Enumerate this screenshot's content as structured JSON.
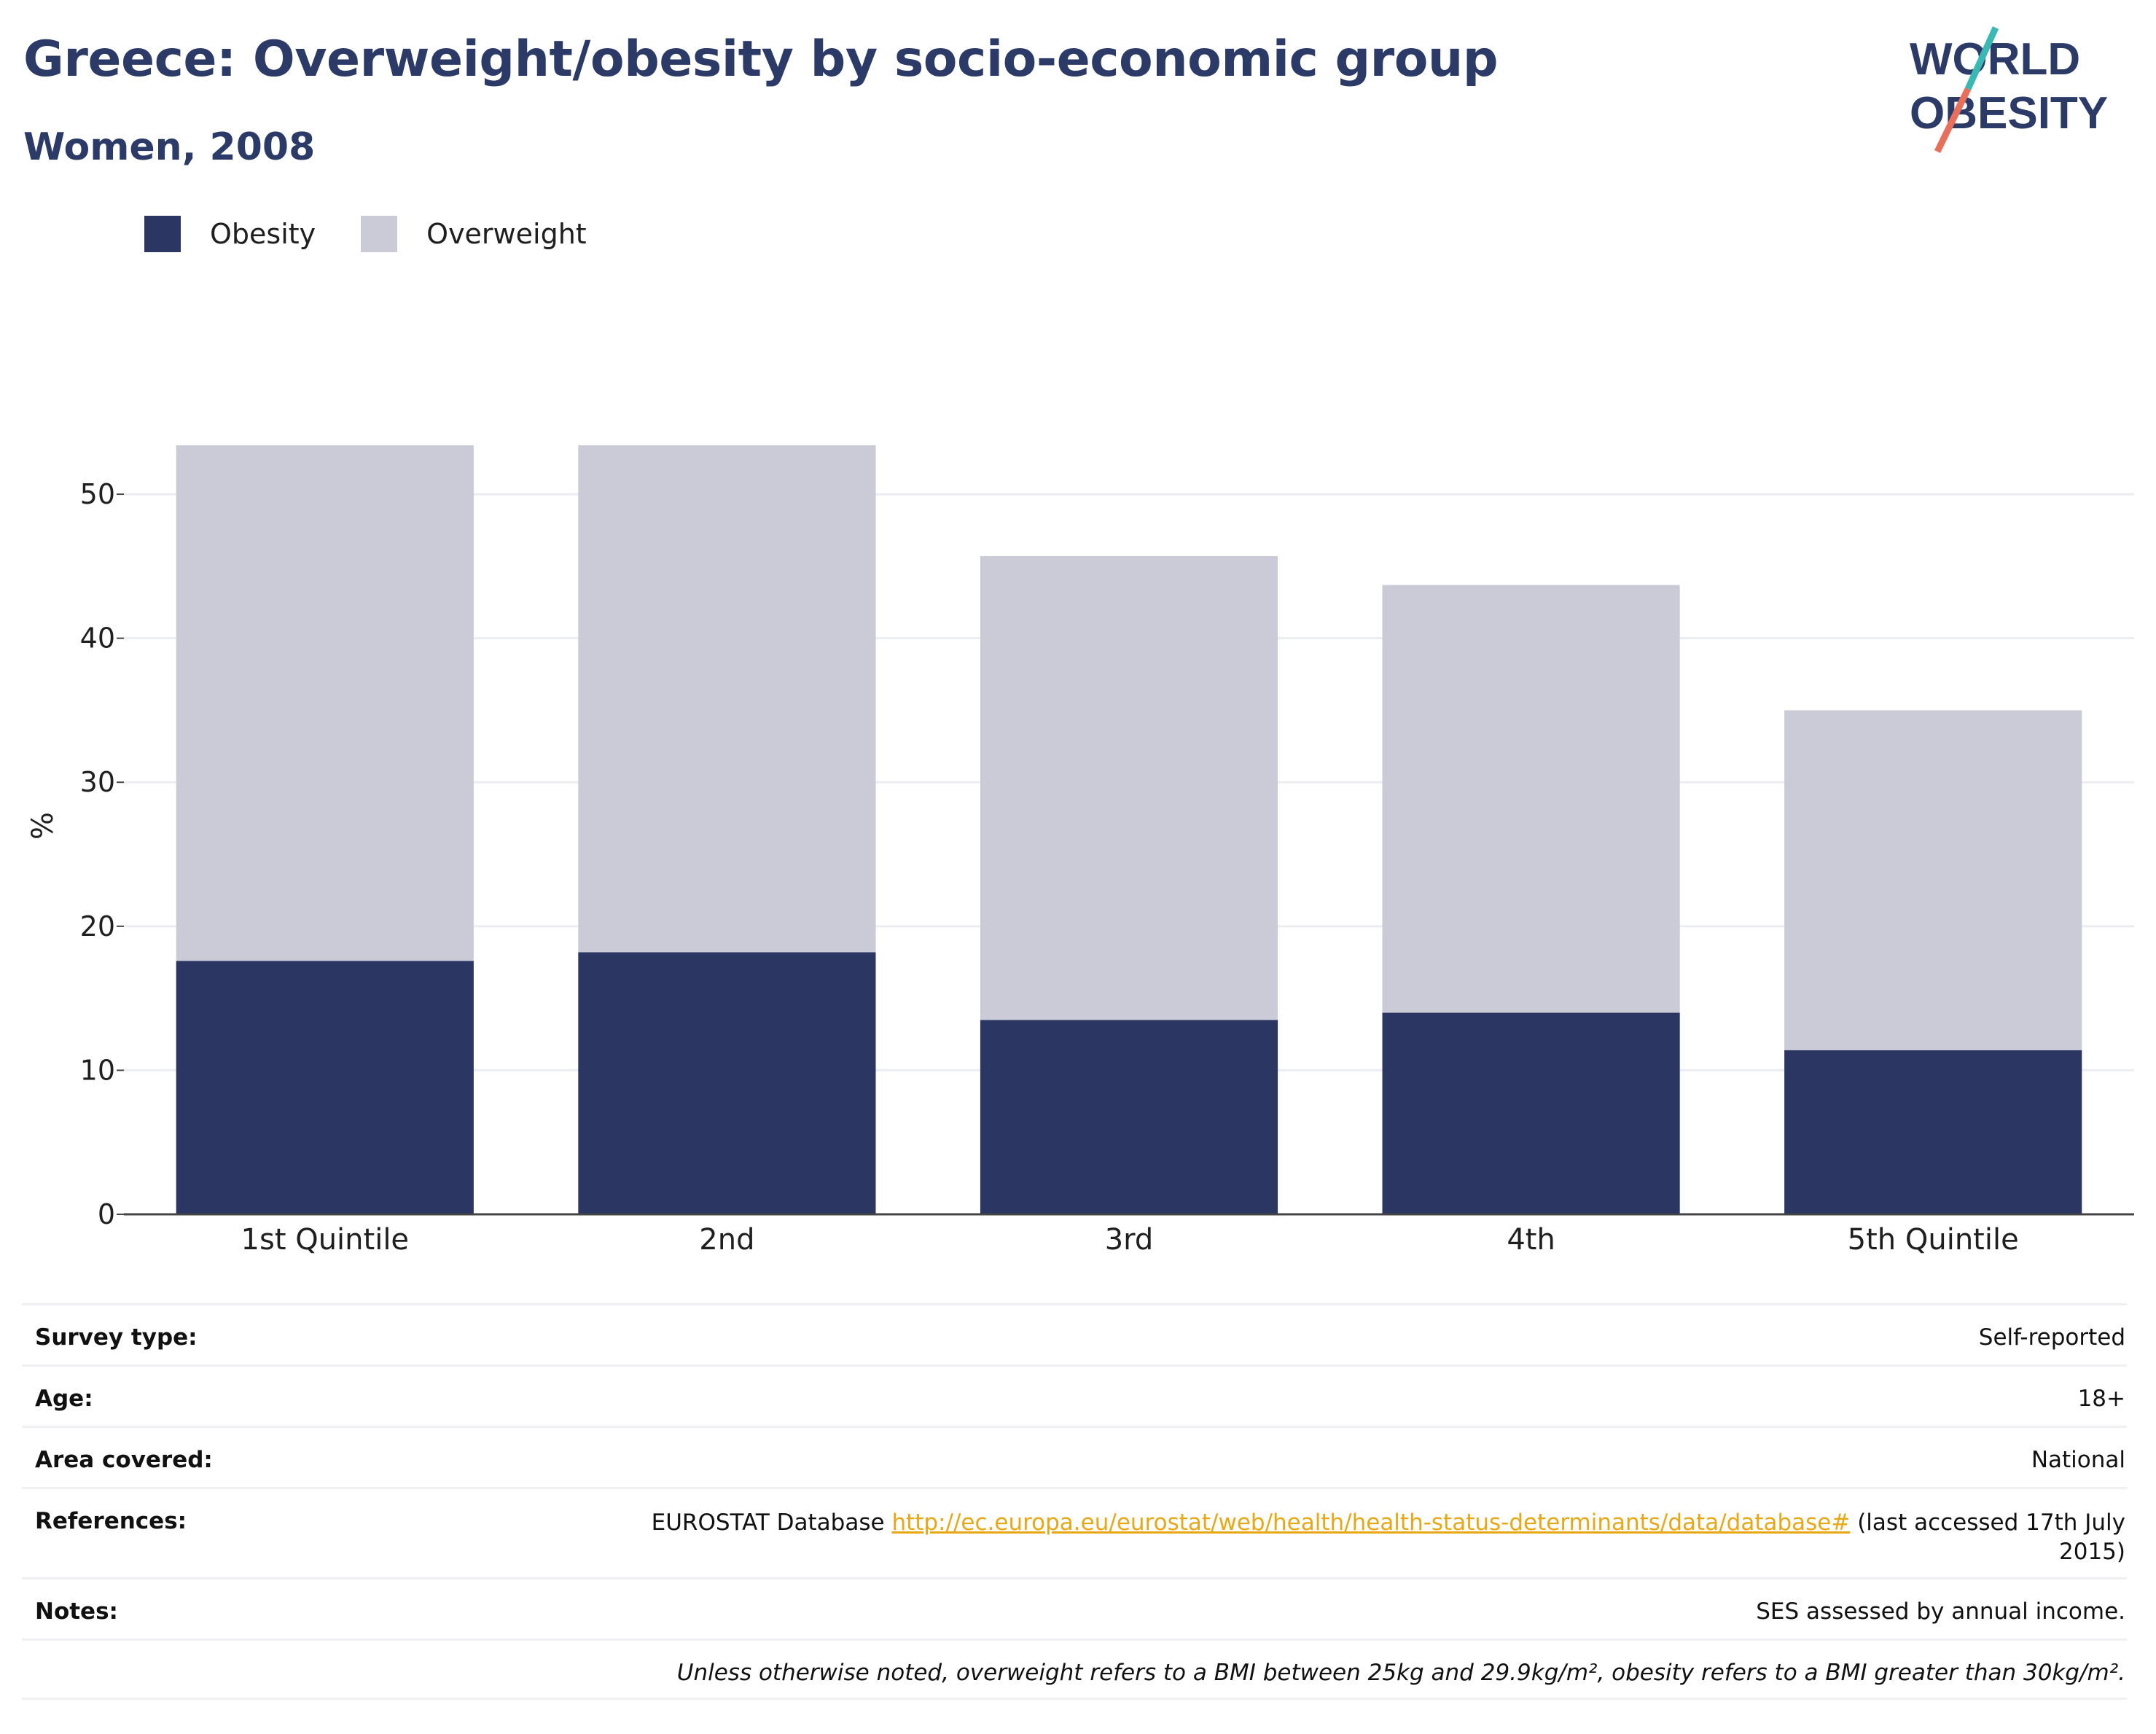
{
  "header": {
    "title": "Greece: Overweight/obesity by socio-economic group",
    "subtitle": "Women, 2008"
  },
  "logo": {
    "line1": "WORLD",
    "line2": "OBESITY"
  },
  "colors": {
    "obesity": "#2b3663",
    "overweight": "#cacbd6",
    "title": "#2b3a67",
    "logo_teal": "#3ab8b4",
    "logo_coral": "#e86f5c",
    "link": "#e8a815"
  },
  "chart_data": {
    "type": "bar",
    "stacked": true,
    "categories": [
      "1st Quintile",
      "2nd",
      "3rd",
      "4th",
      "5th Quintile"
    ],
    "series": [
      {
        "name": "Obesity",
        "values": [
          17.6,
          18.2,
          13.5,
          14.0,
          11.4
        ]
      },
      {
        "name": "Overweight",
        "values": [
          35.8,
          35.2,
          32.2,
          29.7,
          23.6
        ]
      }
    ],
    "ylabel": "%",
    "yticks": [
      "0",
      "10",
      "20",
      "30",
      "40",
      "50"
    ],
    "ylim": [
      0,
      58
    ],
    "grid": true,
    "legend_position": "top-left"
  },
  "meta": {
    "survey_type_label": "Survey type:",
    "survey_type_value": "Self-reported",
    "age_label": "Age:",
    "age_value": "18+",
    "area_label": "Area covered:",
    "area_value": "National",
    "references_label": "References:",
    "references_prefix": "EUROSTAT Database ",
    "references_link": "http://ec.europa.eu/eurostat/web/health/health-status-determinants/data/database#",
    "references_suffix": " (last accessed 17th July 2015)",
    "notes_label": "Notes:",
    "notes_value": "SES assessed by annual income.",
    "definition": "Unless otherwise noted, overweight refers to a BMI between 25kg and 29.9kg/m², obesity refers to a BMI greater than 30kg/m²."
  }
}
